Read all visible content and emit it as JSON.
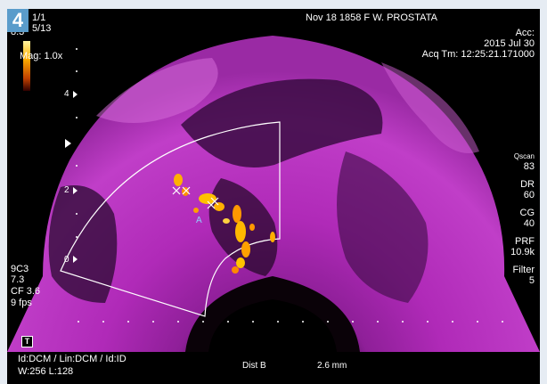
{
  "figure_label": "4",
  "header": {
    "frame_counter": "1/1",
    "frame_index": "5/13",
    "magnification": "Mag: 1.0x",
    "patient_line": "Nov 18 1858 F W. PROSTATA",
    "accession_label": "Acc:",
    "study_date": "2015 Jul 30",
    "acq_time": "Acq Tm: 12:25:21.171000"
  },
  "left_scale": {
    "color_bar_top_label": "8.3",
    "depth_ticks": [
      "4",
      "2",
      "0"
    ]
  },
  "probe_info": {
    "transducer": "9C3",
    "frequency": "7.3",
    "color_freq": "CF 3.6",
    "frame_rate": "9 fps"
  },
  "right_params": {
    "qscan_label": "Qscan",
    "qscan_value": "83",
    "dr_label": "DR",
    "dr_value": "60",
    "cg_label": "CG",
    "cg_value": "40",
    "prf_label": "PRF",
    "prf_value": "10.9k",
    "filter_label": "Filter",
    "filter_value": "5"
  },
  "measurement": {
    "marker_a": "A",
    "marker_b_label": "Dist B",
    "distance": "2.6  mm"
  },
  "footer": {
    "t_icon": "T",
    "lut_line": "Id:DCM / Lin:DCM / Id:ID",
    "window_level": "W:256  L:128"
  },
  "colors": {
    "tissue": "#b02ab8",
    "doppler": "#ffb000",
    "frame_bg": "#e6ecf3",
    "badge": "#5a9ccb"
  }
}
